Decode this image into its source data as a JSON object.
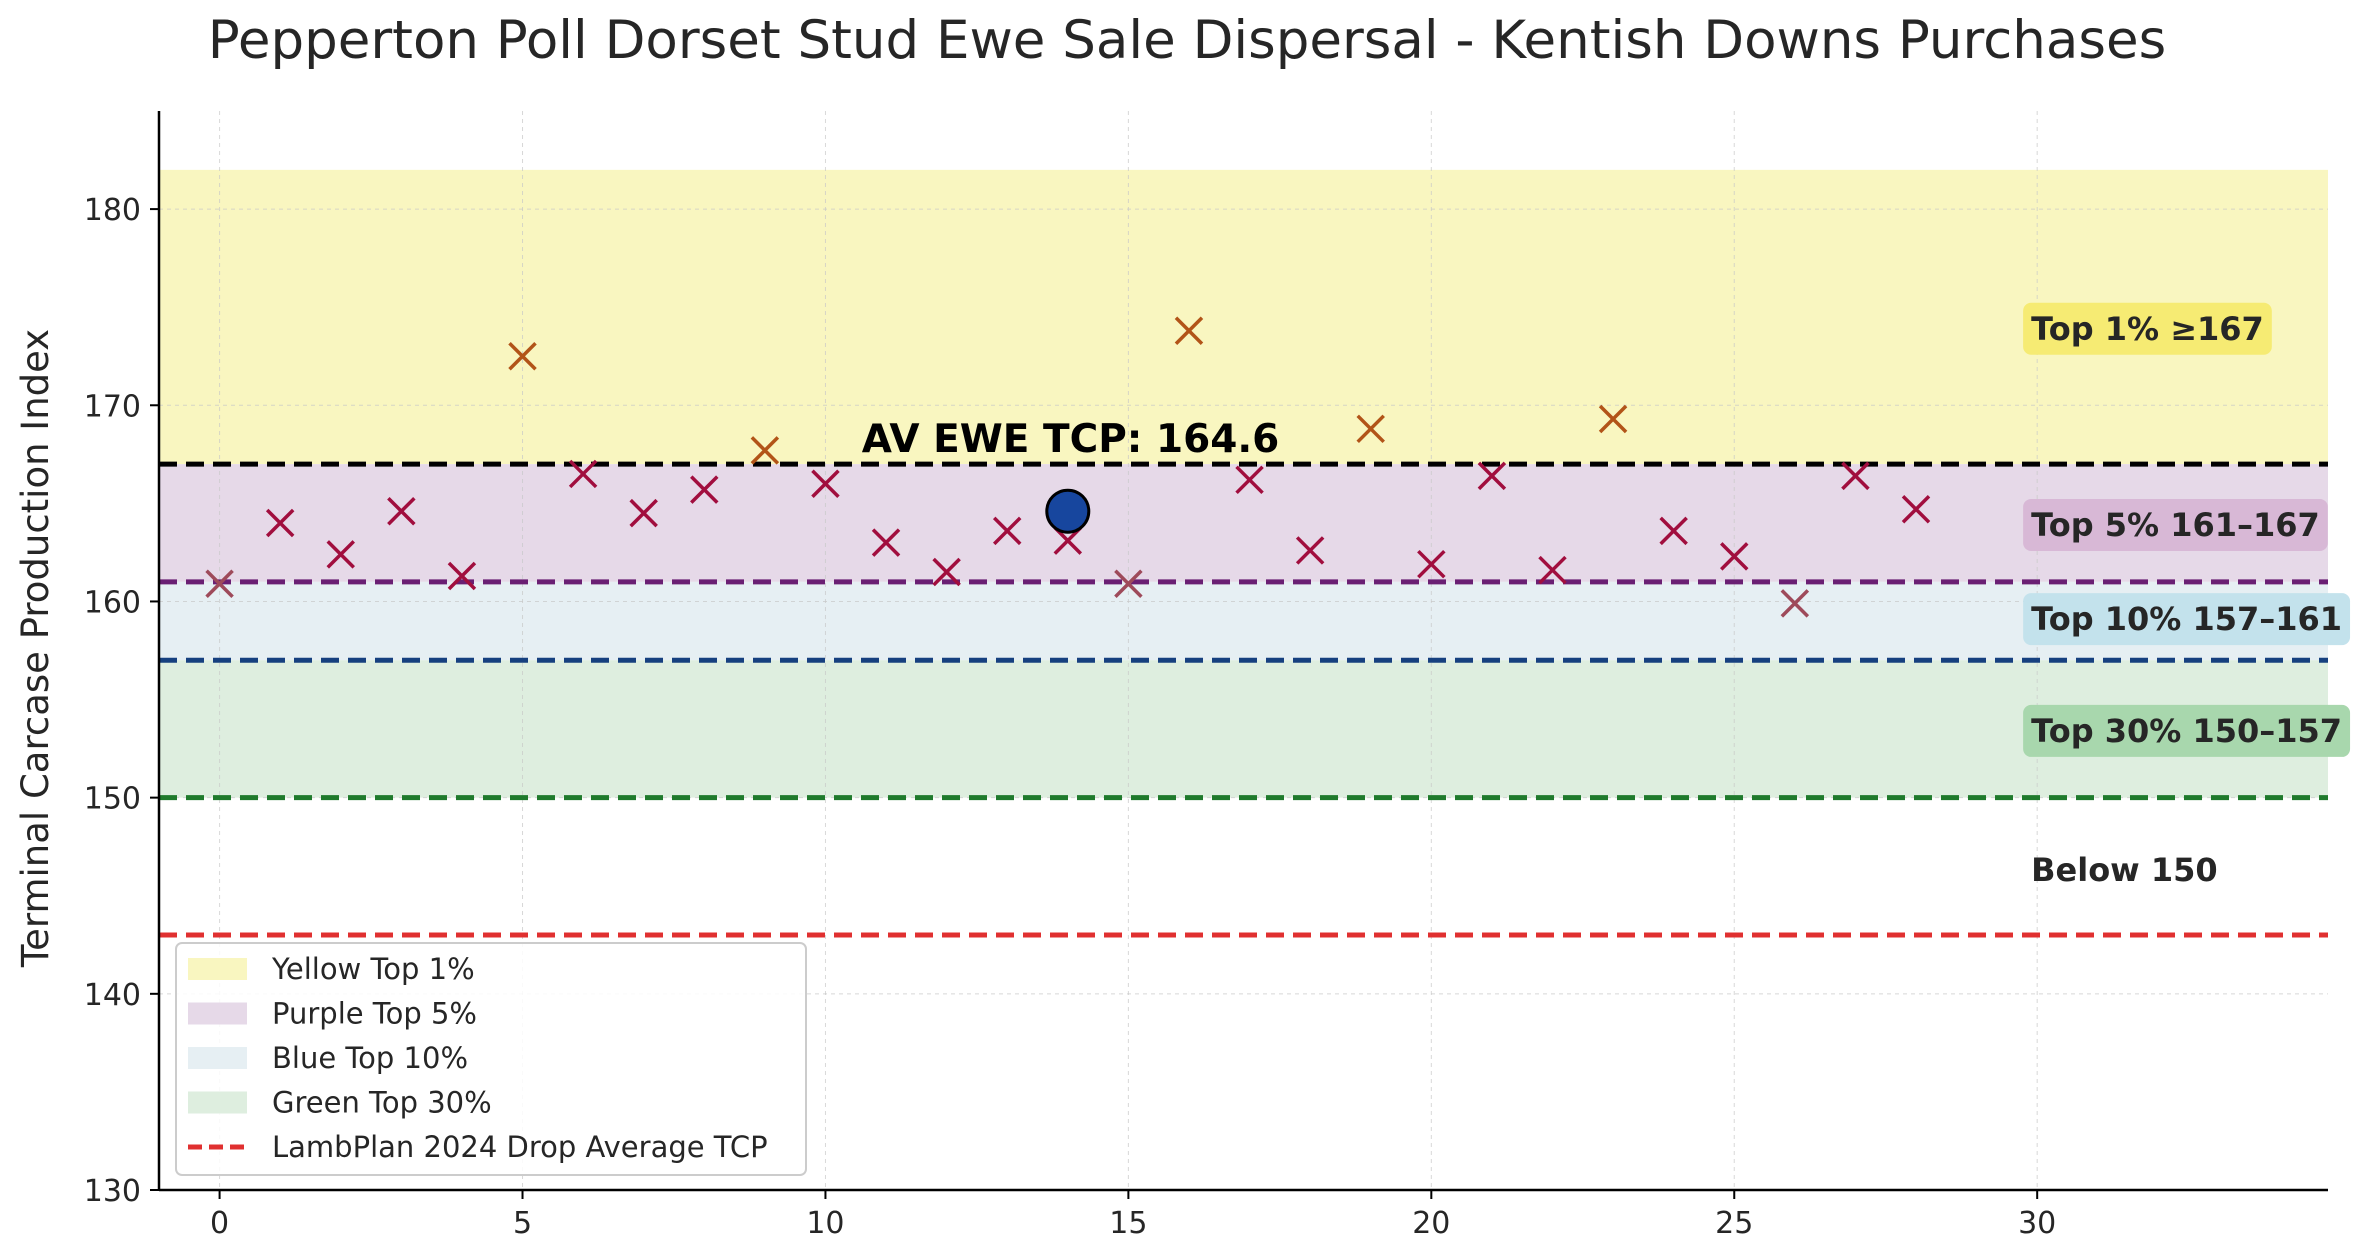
{
  "chart_data": {
    "type": "scatter",
    "title": "Pepperton Poll Dorset Stud Ewe Sale Dispersal - Kentish Downs Purchases",
    "xlabel": "",
    "ylabel": "Terminal Carcase Production Index",
    "xlim": [
      -1,
      34.8
    ],
    "ylim": [
      130,
      185
    ],
    "x_ticks": [
      "0",
      "5",
      "10",
      "15",
      "20",
      "25",
      "30"
    ],
    "y_ticks": [
      "130",
      "140",
      "150",
      "160",
      "170",
      "180"
    ],
    "grid": true,
    "bands": [
      {
        "name": "Yellow Top 1%",
        "y0": 167,
        "y1": 182,
        "color": "#f9f6c0"
      },
      {
        "name": "Purple Top 5%",
        "y0": 161,
        "y1": 167,
        "color": "#e6d9e8"
      },
      {
        "name": "Blue Top 10%",
        "y0": 157,
        "y1": 161,
        "color": "#e6eff3"
      },
      {
        "name": "Green Top 30%",
        "y0": 150,
        "y1": 157,
        "color": "#deeedf"
      }
    ],
    "reference_lines": [
      {
        "y": 167,
        "color": "#000000"
      },
      {
        "y": 161,
        "color": "#6a1f73"
      },
      {
        "y": 157,
        "color": "#16407f"
      },
      {
        "y": 150,
        "color": "#1f7a2c"
      },
      {
        "y": 143,
        "name": "LambPlan 2024 Drop Average TCP",
        "color": "#e03030"
      }
    ],
    "band_labels": [
      {
        "text": "Top 1% ≥167",
        "y": 173.9,
        "bg": "#f6eb73"
      },
      {
        "text": "Top 5% 161–167",
        "y": 163.9,
        "bg": "#d8b8d6"
      },
      {
        "text": "Top 10% 157–161",
        "y": 159.1,
        "bg": "#c3e2ec"
      },
      {
        "text": "Top 30% 150–157",
        "y": 153.4,
        "bg": "#a8d7ad"
      },
      {
        "text": "Below 150",
        "y": 146.3,
        "bg": ""
      }
    ],
    "label_x": 29.9,
    "points": [
      {
        "x": 0,
        "y": 160.9,
        "color": "#9e4a5a"
      },
      {
        "x": 1,
        "y": 164.0,
        "color": "#a10e3e"
      },
      {
        "x": 2,
        "y": 162.4,
        "color": "#a10e3e"
      },
      {
        "x": 3,
        "y": 164.6,
        "color": "#a10e3e"
      },
      {
        "x": 4,
        "y": 161.3,
        "color": "#a10e3e"
      },
      {
        "x": 5,
        "y": 172.5,
        "color": "#b25418"
      },
      {
        "x": 6,
        "y": 166.5,
        "color": "#a10e3e"
      },
      {
        "x": 7,
        "y": 164.5,
        "color": "#a10e3e"
      },
      {
        "x": 8,
        "y": 165.7,
        "color": "#a10e3e"
      },
      {
        "x": 9,
        "y": 167.7,
        "color": "#b25418"
      },
      {
        "x": 10,
        "y": 166.0,
        "color": "#a10e3e"
      },
      {
        "x": 11,
        "y": 163.0,
        "color": "#a10e3e"
      },
      {
        "x": 12,
        "y": 161.5,
        "color": "#a10e3e"
      },
      {
        "x": 13,
        "y": 163.6,
        "color": "#a10e3e"
      },
      {
        "x": 14,
        "y": 163.1,
        "color": "#a10e3e"
      },
      {
        "x": 15,
        "y": 160.9,
        "color": "#9e4a5a"
      },
      {
        "x": 16,
        "y": 173.8,
        "color": "#b25418"
      },
      {
        "x": 17,
        "y": 166.2,
        "color": "#a10e3e"
      },
      {
        "x": 18,
        "y": 162.6,
        "color": "#a10e3e"
      },
      {
        "x": 19,
        "y": 168.8,
        "color": "#b25418"
      },
      {
        "x": 20,
        "y": 161.9,
        "color": "#a10e3e"
      },
      {
        "x": 21,
        "y": 166.4,
        "color": "#a10e3e"
      },
      {
        "x": 22,
        "y": 161.6,
        "color": "#a10e3e"
      },
      {
        "x": 23,
        "y": 169.3,
        "color": "#b25418"
      },
      {
        "x": 24,
        "y": 163.6,
        "color": "#a10e3e"
      },
      {
        "x": 25,
        "y": 162.3,
        "color": "#a10e3e"
      },
      {
        "x": 26,
        "y": 159.9,
        "color": "#9e4a5a"
      },
      {
        "x": 27,
        "y": 166.4,
        "color": "#a10e3e"
      },
      {
        "x": 28,
        "y": 164.7,
        "color": "#a10e3e"
      }
    ],
    "average_point": {
      "x": 14,
      "y": 164.6,
      "color": "#17469e"
    },
    "annotation": {
      "text": "AV EWE TCP: 164.6",
      "x": 10.6,
      "y": 167.1
    },
    "legend": {
      "placement": "lower-left",
      "entries": [
        {
          "label": "Yellow Top 1%",
          "kind": "patch",
          "color": "#f9f6c0"
        },
        {
          "label": "Purple Top 5%",
          "kind": "patch",
          "color": "#e6d9e8"
        },
        {
          "label": "Blue Top 10%",
          "kind": "patch",
          "color": "#e6eff3"
        },
        {
          "label": "Green Top 30%",
          "kind": "patch",
          "color": "#deeedf"
        },
        {
          "label": "LambPlan 2024 Drop Average TCP",
          "kind": "dashed-line",
          "color": "#e03030"
        }
      ]
    }
  }
}
